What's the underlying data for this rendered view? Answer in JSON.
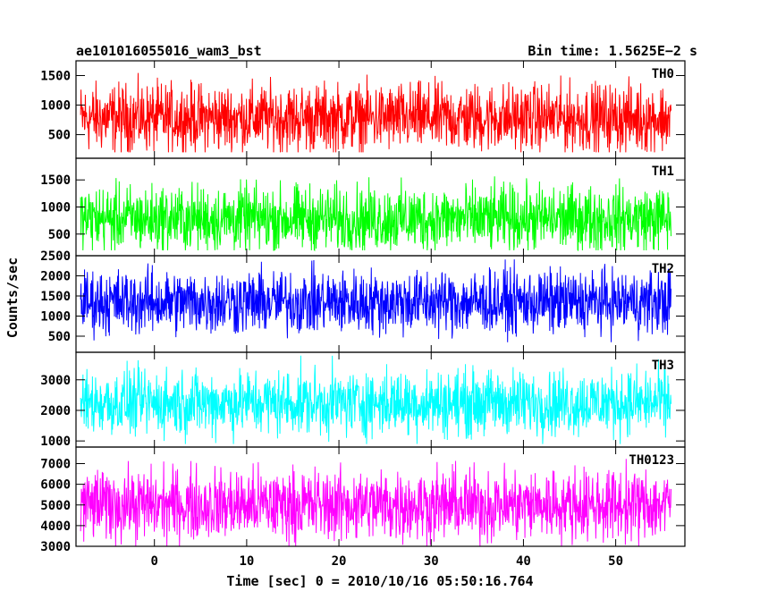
{
  "chart_data": {
    "type": "line",
    "title_left": "ae101016055016_wam3_bst",
    "title_right": "Bin time: 1.5625E−2 s",
    "xlabel": "Time [sec] 0 = 2010/10/16 05:50:16.764",
    "ylabel": "Counts/sec",
    "xlim": [
      -8.5,
      57.5
    ],
    "x_range": [
      -8,
      56
    ],
    "x_ticks": [
      0,
      10,
      20,
      30,
      40,
      50
    ],
    "series": [
      {
        "name": "TH0",
        "color": "#ff0000",
        "ylim": [
          100,
          1750
        ],
        "y_ticks": [
          500,
          1000,
          1500
        ],
        "mean": 780,
        "low": 200,
        "high": 1750
      },
      {
        "name": "TH1",
        "color": "#00ff00",
        "ylim": [
          100,
          1900
        ],
        "y_ticks": [
          500,
          1000,
          1500
        ],
        "mean": 780,
        "low": 200,
        "high": 1850
      },
      {
        "name": "TH2",
        "color": "#0000ff",
        "ylim": [
          100,
          2500
        ],
        "y_ticks": [
          500,
          1000,
          1500,
          2000,
          2500
        ],
        "mean": 1350,
        "low": 350,
        "high": 2500
      },
      {
        "name": "TH3",
        "color": "#00ffff",
        "ylim": [
          800,
          3900
        ],
        "y_ticks": [
          1000,
          2000,
          3000
        ],
        "mean": 2250,
        "low": 900,
        "high": 3800
      },
      {
        "name": "TH0123",
        "color": "#ff00ff",
        "ylim": [
          3000,
          7800
        ],
        "y_ticks": [
          3000,
          4000,
          5000,
          6000,
          7000
        ],
        "mean": 5000,
        "low": 3000,
        "high": 7700
      }
    ]
  }
}
